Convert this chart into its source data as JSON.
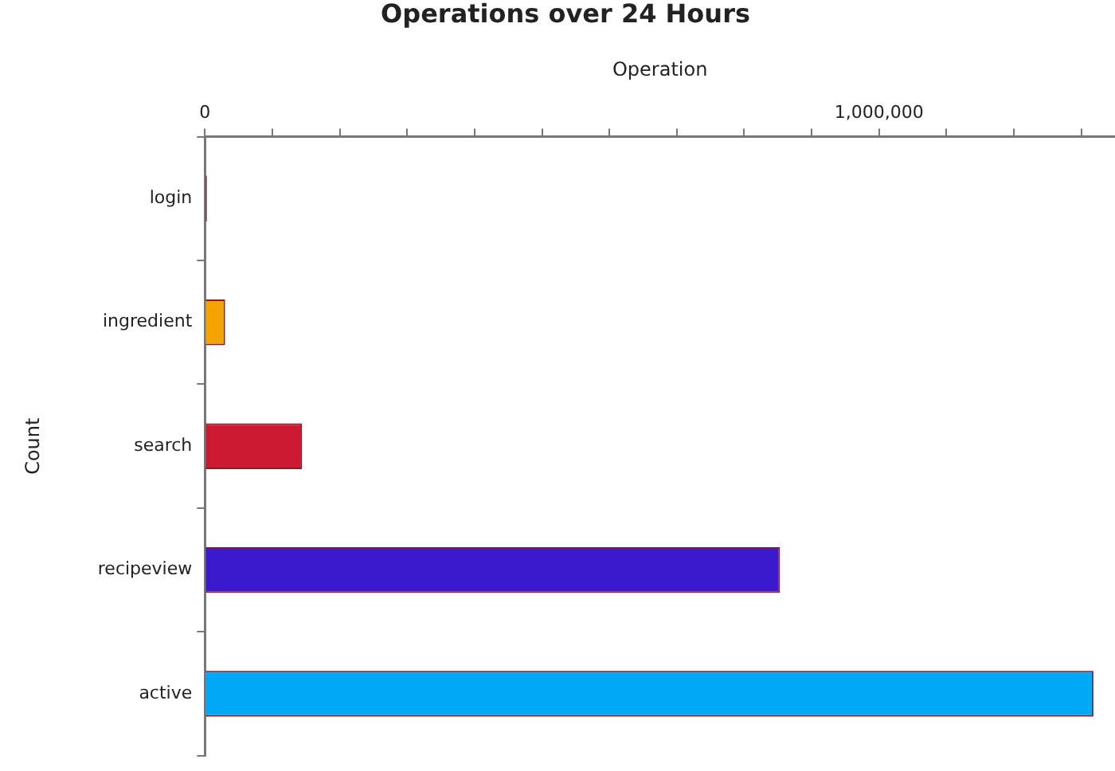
{
  "chart_data": {
    "type": "bar",
    "orientation": "horizontal",
    "title": "Operations over 24 Hours",
    "xlabel": "Operation",
    "ylabel": "Count",
    "categories": [
      "login",
      "ingredient",
      "search",
      "recipeview",
      "active"
    ],
    "values": [
      3000,
      30000,
      144000,
      853000,
      1318000
    ],
    "colors": [
      "#5a1a2a",
      "#f5a300",
      "#cc1a33",
      "#3a1acc",
      "#00a8f5"
    ],
    "xlim": [
      0,
      1350000
    ],
    "xticks": [
      0,
      {
        "value": 100000,
        "label": null
      },
      {
        "value": 200000,
        "label": null
      },
      {
        "value": 300000,
        "label": null
      },
      {
        "value": 400000,
        "label": null
      },
      {
        "value": 500000,
        "label": null
      },
      {
        "value": 600000,
        "label": null
      },
      {
        "value": 700000,
        "label": null
      },
      {
        "value": 800000,
        "label": null
      },
      {
        "value": 900000,
        "label": null
      },
      {
        "value": 1000000,
        "label": "1,000,000"
      },
      {
        "value": 1100000,
        "label": null
      },
      {
        "value": 1200000,
        "label": null
      },
      {
        "value": 1300000,
        "label": null
      }
    ],
    "grid": false,
    "legend": false
  }
}
